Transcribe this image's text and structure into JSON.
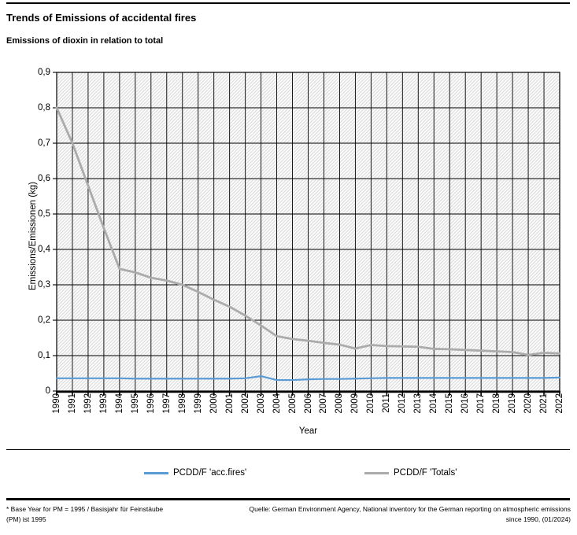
{
  "header": {
    "title": "Trends of Emissions of accidental fires",
    "subtitle": "Emissions of dioxin in relation to total"
  },
  "chart_data": {
    "type": "line",
    "title": "Trends of Emissions of accidental fires",
    "xlabel": "Year",
    "ylabel": "Emissions/Emissionen (kg)",
    "ylim": [
      0,
      0.9
    ],
    "ytick_step": 0.1,
    "ytick_labels": [
      "0",
      "0,1",
      "0,2",
      "0,3",
      "0,4",
      "0,5",
      "0,6",
      "0,7",
      "0,8",
      "0,9"
    ],
    "grid": true,
    "plot_background": "diagonal-hatch",
    "legend_position": "bottom",
    "x": [
      "1990",
      "1991",
      "1992",
      "1993",
      "1994",
      "1995",
      "1996",
      "1997",
      "1998",
      "1999",
      "2000",
      "2001",
      "2002",
      "2003",
      "2004",
      "2005",
      "2006",
      "2007",
      "2008",
      "2009",
      "2010",
      "2011",
      "2012",
      "2013",
      "2014",
      "2015",
      "2016",
      "2017",
      "2018",
      "2019",
      "2020",
      "2021",
      "2022"
    ],
    "series": [
      {
        "name": "PCDD/F 'acc.fires'",
        "color": "#5B9BD5",
        "stroke_width": 2.2,
        "values": [
          0.036,
          0.036,
          0.036,
          0.036,
          0.036,
          0.035,
          0.035,
          0.035,
          0.035,
          0.035,
          0.035,
          0.035,
          0.036,
          0.042,
          0.031,
          0.031,
          0.033,
          0.034,
          0.034,
          0.035,
          0.036,
          0.037,
          0.037,
          0.037,
          0.037,
          0.037,
          0.037,
          0.037,
          0.037,
          0.037,
          0.037,
          0.037,
          0.038
        ]
      },
      {
        "name": "PCDD/F 'Totals'",
        "color": "#ABABAB",
        "stroke_width": 2.8,
        "values": [
          0.8,
          0.7,
          0.58,
          0.46,
          0.345,
          0.335,
          0.32,
          0.312,
          0.3,
          0.28,
          0.258,
          0.238,
          0.213,
          0.185,
          0.155,
          0.147,
          0.142,
          0.136,
          0.131,
          0.12,
          0.13,
          0.127,
          0.126,
          0.125,
          0.119,
          0.118,
          0.116,
          0.114,
          0.112,
          0.11,
          0.102,
          0.108,
          0.106
        ]
      }
    ]
  },
  "footer": {
    "note_line1": "* Base Year for PM = 1995 / Basisjahr für Feinstäube",
    "note_line2": "(PM) ist 1995",
    "source_line1": "Quelle: German Environment Agency, National inventory for the German reporting on atmospheric emissions",
    "source_line2": "since 1990, (01/2024)"
  },
  "colors": {
    "series_accfires": "#5B9BD5",
    "series_totals": "#ABABAB",
    "gridline": "#000000",
    "hatch": "#DEDEDE"
  }
}
